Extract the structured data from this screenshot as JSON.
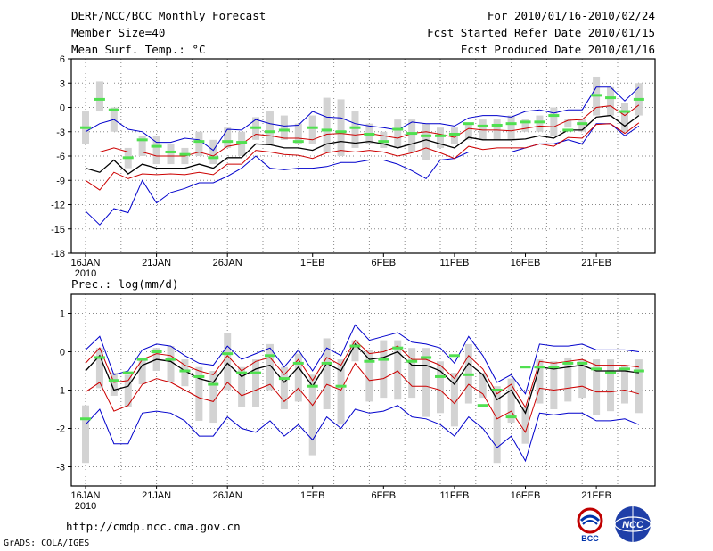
{
  "header": {
    "title": "DERF/NCC/BCC Monthly Forecast",
    "member_size": "Member Size=40",
    "variable_top": "Mean Surf. Temp.: °C",
    "forecast_range": "For 2010/01/16-2010/02/24",
    "started_date": "Fcst Started Refer Date 2010/01/15",
    "produced_date": "Fcst Produced Date 2010/01/16"
  },
  "footer": {
    "url": "http://cmdp.ncc.cma.gov.cn",
    "credit": "GrADS: COLA/IGES",
    "logo_left_text": "BCC",
    "logo_right_text": "NCC"
  },
  "colors": {
    "box": "#d3d3d3",
    "median": "#50e050",
    "mean": "#000000",
    "inner": "#cc0000",
    "outer": "#0000cc",
    "grid": "#888888"
  },
  "chart_data": [
    {
      "type": "line",
      "title": "Mean Surf. Temp.: °C",
      "ylim": [
        -18,
        6
      ],
      "yticks": [
        6,
        3,
        0,
        -3,
        -6,
        -9,
        -12,
        -15,
        -18
      ],
      "x": [
        1,
        2,
        3,
        4,
        5,
        6,
        7,
        8,
        9,
        10,
        11,
        12,
        13,
        14,
        15,
        16,
        17,
        18,
        19,
        20,
        21,
        22,
        23,
        24,
        25,
        26,
        27,
        28,
        29,
        30,
        31,
        32,
        33,
        34,
        35,
        36,
        37,
        38,
        39,
        40
      ],
      "xticks": [
        {
          "x": 1,
          "label": "16JAN",
          "sub": "2010"
        },
        {
          "x": 6,
          "label": "21JAN"
        },
        {
          "x": 11,
          "label": "26JAN"
        },
        {
          "x": 17,
          "label": "1FEB"
        },
        {
          "x": 22,
          "label": "6FEB"
        },
        {
          "x": 27,
          "label": "11FEB"
        },
        {
          "x": 32,
          "label": "16FEB"
        },
        {
          "x": 37,
          "label": "21FEB"
        }
      ],
      "series": [
        {
          "name": "mean",
          "values": [
            -7.5,
            -8,
            -6.5,
            -8.2,
            -7,
            -7.5,
            -7.5,
            -7.5,
            -7,
            -7.5,
            -6.2,
            -6.2,
            -4.5,
            -4.6,
            -5,
            -5,
            -5.3,
            -4.5,
            -4.2,
            -4.4,
            -4.2,
            -4.5,
            -5,
            -4.5,
            -4,
            -4.5,
            -5,
            -3.7,
            -4,
            -4,
            -4,
            -3.9,
            -3.5,
            -3.8,
            -2.8,
            -2.8,
            -1.2,
            -1,
            -2.3,
            -1
          ]
        },
        {
          "name": "inner_upper",
          "values": [
            -5.5,
            -5.5,
            -5,
            -5.5,
            -5.5,
            -6,
            -6,
            -6,
            -5.5,
            -6,
            -4.8,
            -4.5,
            -3.3,
            -3.5,
            -3.8,
            -3.8,
            -4,
            -3.3,
            -3.2,
            -3.4,
            -3.2,
            -3.5,
            -3.8,
            -3.2,
            -3,
            -3.3,
            -3.7,
            -2.6,
            -2.8,
            -2.8,
            -2.9,
            -2.6,
            -2.3,
            -2.4,
            -1.6,
            -1.5,
            0,
            0.2,
            -1,
            0.3
          ]
        },
        {
          "name": "inner_lower",
          "values": [
            -9,
            -10.2,
            -8,
            -8.8,
            -8.2,
            -8.3,
            -8.2,
            -8.3,
            -8,
            -8.3,
            -7,
            -7,
            -5.3,
            -5.5,
            -5.8,
            -5.9,
            -6.3,
            -5.6,
            -5.3,
            -5.5,
            -5.3,
            -5.5,
            -6,
            -5.6,
            -5,
            -5.6,
            -6.3,
            -4.8,
            -5.2,
            -5,
            -5,
            -5,
            -4.5,
            -4.8,
            -3.7,
            -3.8,
            -2.1,
            -2,
            -3.2,
            -1.9
          ]
        },
        {
          "name": "outer_upper",
          "values": [
            -3,
            -2,
            -1.5,
            -2.7,
            -3,
            -4.3,
            -4.3,
            -3.8,
            -4,
            -5.3,
            -2.7,
            -2.8,
            -1.5,
            -2,
            -2.3,
            -2.2,
            -0.5,
            -1.2,
            -1.3,
            -2,
            -2.3,
            -2.5,
            -2.8,
            -1.8,
            -2,
            -2,
            -2.3,
            -1.3,
            -1,
            -1,
            -1.2,
            -0.5,
            -0.3,
            -0.7,
            -0.3,
            -0.3,
            2.5,
            2.5,
            0.8,
            2.5
          ]
        },
        {
          "name": "outer_lower",
          "values": [
            -12.8,
            -14.5,
            -12.5,
            -13,
            -9,
            -11.8,
            -10.5,
            -10,
            -9.3,
            -9.3,
            -8.5,
            -7.5,
            -6,
            -7.5,
            -7.7,
            -7.5,
            -7.5,
            -7.3,
            -6.8,
            -6.8,
            -6.5,
            -6.5,
            -7,
            -7.8,
            -8.8,
            -6.5,
            -6.3,
            -5.5,
            -5.5,
            -5.5,
            -5.5,
            -5,
            -4.5,
            -4.5,
            -4,
            -4.5,
            -2,
            -2,
            -3.5,
            -2.3
          ]
        },
        {
          "name": "box_top",
          "values": [
            -0.5,
            3.2,
            0,
            -5,
            -3.5,
            -3.5,
            -4.5,
            -5,
            -3,
            -4,
            -2.5,
            -3,
            -1.2,
            -0.5,
            -1,
            -2,
            -1,
            1.2,
            1,
            -0.5,
            -2,
            -3,
            -1.5,
            -1.5,
            -2,
            -2.5,
            -2.5,
            -2,
            -1.5,
            -1.5,
            -1,
            -1.5,
            -1,
            0,
            -1.5,
            -1.5,
            3.8,
            2.5,
            0.5,
            3
          ]
        },
        {
          "name": "box_bottom",
          "values": [
            -4.5,
            -0.5,
            -3,
            -7.5,
            -6,
            -7,
            -7,
            -7,
            -6,
            -7,
            -5,
            -6,
            -4,
            -4.5,
            -4,
            -4.5,
            -4.5,
            -5.5,
            -6,
            -5,
            -4.5,
            -5,
            -5,
            -5.5,
            -6.5,
            -5,
            -4.5,
            -4,
            -4,
            -4,
            -4,
            -3,
            -3,
            -3.5,
            -2.5,
            -3,
            -1,
            -1,
            -3,
            -1
          ]
        },
        {
          "name": "median",
          "values": [
            -2.5,
            1,
            -0.3,
            -6.2,
            -4,
            -4.8,
            -5.5,
            -5.8,
            -4.2,
            -6.2,
            -4.2,
            -4.3,
            -2.5,
            -3,
            -2.8,
            -4.2,
            -2.5,
            -2.8,
            -3,
            -2.5,
            -3.3,
            -4.2,
            -2.7,
            -3.2,
            -3.5,
            -3.5,
            -3.3,
            -2,
            -2.3,
            -2.2,
            -2,
            -1.8,
            -1.8,
            -1,
            -2.8,
            -2,
            1.5,
            1.2,
            -0.5,
            1
          ]
        }
      ]
    },
    {
      "type": "line",
      "title": "Prec.: log(mm/d)",
      "ylim": [
        -3.5,
        1.5
      ],
      "yticks": [
        1,
        0,
        -1,
        -2,
        -3
      ],
      "x": [
        1,
        2,
        3,
        4,
        5,
        6,
        7,
        8,
        9,
        10,
        11,
        12,
        13,
        14,
        15,
        16,
        17,
        18,
        19,
        20,
        21,
        22,
        23,
        24,
        25,
        26,
        27,
        28,
        29,
        30,
        31,
        32,
        33,
        34,
        35,
        36,
        37,
        38,
        39,
        40
      ],
      "xticks": [
        {
          "x": 1,
          "label": "16JAN",
          "sub": "2010"
        },
        {
          "x": 6,
          "label": "21JAN"
        },
        {
          "x": 11,
          "label": "26JAN"
        },
        {
          "x": 17,
          "label": "1FEB"
        },
        {
          "x": 22,
          "label": "6FEB"
        },
        {
          "x": 27,
          "label": "11FEB"
        },
        {
          "x": 32,
          "label": "16FEB"
        },
        {
          "x": 37,
          "label": "21FEB"
        }
      ],
      "series": [
        {
          "name": "mean",
          "values": [
            -0.5,
            -0.1,
            -1,
            -0.9,
            -0.35,
            -0.2,
            -0.25,
            -0.5,
            -0.7,
            -0.8,
            -0.3,
            -0.65,
            -0.45,
            -0.35,
            -0.8,
            -0.4,
            -0.9,
            -0.3,
            -0.5,
            0.2,
            -0.2,
            -0.15,
            0,
            -0.35,
            -0.35,
            -0.5,
            -0.85,
            -0.3,
            -0.6,
            -1.25,
            -1,
            -1.6,
            -0.4,
            -0.45,
            -0.4,
            -0.35,
            -0.5,
            -0.5,
            -0.5,
            -0.55
          ]
        },
        {
          "name": "inner_upper",
          "values": [
            -0.3,
            0.1,
            -0.8,
            -0.75,
            -0.2,
            -0.05,
            -0.1,
            -0.35,
            -0.5,
            -0.6,
            -0.1,
            -0.5,
            -0.25,
            -0.15,
            -0.6,
            -0.2,
            -0.75,
            -0.15,
            -0.35,
            0.3,
            -0.05,
            0,
            0.15,
            -0.2,
            -0.2,
            -0.35,
            -0.7,
            -0.1,
            -0.45,
            -1.1,
            -0.85,
            -1.45,
            -0.25,
            -0.3,
            -0.25,
            -0.2,
            -0.35,
            -0.35,
            -0.35,
            -0.4
          ]
        },
        {
          "name": "inner_lower",
          "values": [
            -1.05,
            -0.8,
            -1.55,
            -1.4,
            -0.85,
            -0.7,
            -0.8,
            -1,
            -1.2,
            -1.3,
            -0.8,
            -1.15,
            -1,
            -0.85,
            -1.3,
            -0.95,
            -1.4,
            -0.85,
            -1,
            -0.3,
            -0.75,
            -0.7,
            -0.5,
            -0.9,
            -0.9,
            -1,
            -1.35,
            -0.85,
            -1.1,
            -1.75,
            -1.55,
            -2.1,
            -0.95,
            -1,
            -0.95,
            -0.9,
            -1.05,
            -1.05,
            -1,
            -1.1
          ]
        },
        {
          "name": "outer_upper",
          "values": [
            0.05,
            0.4,
            -0.6,
            -0.5,
            0.05,
            0.2,
            0.15,
            -0.1,
            -0.3,
            -0.35,
            0.15,
            -0.2,
            -0.05,
            0.1,
            -0.4,
            0.05,
            -0.5,
            0.1,
            -0.1,
            0.7,
            0.3,
            0.4,
            0.5,
            0.25,
            0.2,
            0.1,
            -0.3,
            0.4,
            -0.1,
            -0.8,
            -0.6,
            -1.1,
            0.2,
            0.15,
            0.15,
            0.2,
            0.05,
            0.05,
            0.05,
            0
          ]
        },
        {
          "name": "outer_lower",
          "values": [
            -1.9,
            -1.5,
            -2.4,
            -2.4,
            -1.6,
            -1.55,
            -1.6,
            -1.8,
            -2.2,
            -2.2,
            -1.7,
            -2,
            -2.1,
            -1.8,
            -2.2,
            -1.9,
            -2.3,
            -1.7,
            -2,
            -1.5,
            -1.6,
            -1.55,
            -1.4,
            -1.7,
            -1.75,
            -1.9,
            -2.2,
            -1.7,
            -2,
            -2.5,
            -2.2,
            -2.85,
            -1.6,
            -1.65,
            -1.6,
            -1.6,
            -1.8,
            -1.8,
            -1.75,
            -1.9
          ]
        },
        {
          "name": "box_top",
          "values": [
            -1.4,
            0.1,
            -0.55,
            -0.6,
            -0.15,
            0.1,
            0.15,
            -0.2,
            -0.4,
            -0.5,
            0.5,
            -0.4,
            -0.2,
            0.2,
            -0.4,
            -0.05,
            -0.6,
            0.35,
            -0.2,
            0.3,
            0.05,
            0.3,
            0.3,
            0.1,
            0.1,
            -0.25,
            -0.55,
            0.2,
            -0.55,
            -0.9,
            -0.7,
            -1.45,
            -0.2,
            -0.25,
            -0.15,
            -0.2,
            -0.2,
            -0.2,
            -0.35,
            -0.2
          ]
        },
        {
          "name": "box_bottom",
          "values": [
            -2.9,
            -0.95,
            -1.15,
            -1.45,
            -0.85,
            -0.5,
            -0.8,
            -0.9,
            -1.8,
            -1.85,
            -1,
            -1.45,
            -1.45,
            -1,
            -1.5,
            -1.3,
            -2.7,
            -1.5,
            -1.9,
            -0.25,
            -1.3,
            -1.2,
            -1.25,
            -1.2,
            -1.7,
            -1.6,
            -1.95,
            -1.35,
            -1.2,
            -2.9,
            -1.85,
            -2.4,
            -1.35,
            -1.5,
            -1.3,
            -1.2,
            -1.65,
            -1.55,
            -1.35,
            -1.6
          ]
        },
        {
          "name": "median",
          "values": [
            -1.75,
            -0.15,
            -0.75,
            -0.55,
            -0.2,
            0,
            -0.2,
            -0.5,
            -0.65,
            -0.85,
            -0.05,
            -0.55,
            -0.55,
            -0.1,
            -0.7,
            -0.3,
            -0.9,
            -0.3,
            -0.9,
            0.15,
            -0.25,
            -0.2,
            0.1,
            -0.25,
            -0.15,
            -0.65,
            -0.1,
            -0.6,
            -1.4,
            -1,
            -1.7,
            -0.4,
            -0.4,
            -0.4,
            -0.3,
            -0.3,
            -0.45,
            -0.55,
            -0.45,
            -0.5
          ]
        }
      ]
    }
  ]
}
